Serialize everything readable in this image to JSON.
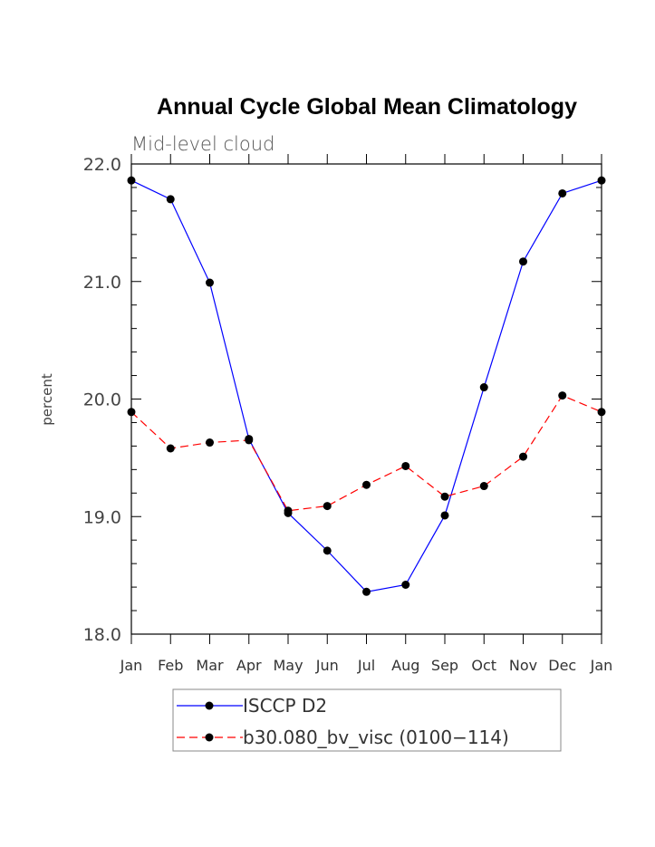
{
  "chart_data": {
    "type": "line",
    "title": "Annual Cycle Global Mean Climatology",
    "subtitle": "Mid-level cloud",
    "xlabel": "",
    "ylabel": "percent",
    "ylim": [
      18.0,
      22.0
    ],
    "yticks": [
      "18.0",
      "19.0",
      "20.0",
      "21.0",
      "22.0"
    ],
    "categories": [
      "Jan",
      "Feb",
      "Mar",
      "Apr",
      "May",
      "Jun",
      "Jul",
      "Aug",
      "Sep",
      "Oct",
      "Nov",
      "Dec",
      "Jan"
    ],
    "grid": false,
    "legend_position": "bottom",
    "series": [
      {
        "name": "ISCCP D2",
        "color": "#0000ff",
        "dash": "solid",
        "marker": "circle",
        "values": [
          21.86,
          21.7,
          20.99,
          19.66,
          19.03,
          18.71,
          18.36,
          18.42,
          19.01,
          20.1,
          21.17,
          21.75,
          21.86
        ]
      },
      {
        "name": "b30.080_bv_visc (0100−114)",
        "color": "#ff0000",
        "dash": "dashed",
        "marker": "circle",
        "values": [
          19.89,
          19.58,
          19.63,
          19.65,
          19.05,
          19.09,
          19.27,
          19.43,
          19.17,
          19.26,
          19.51,
          20.03,
          19.89
        ]
      }
    ]
  }
}
